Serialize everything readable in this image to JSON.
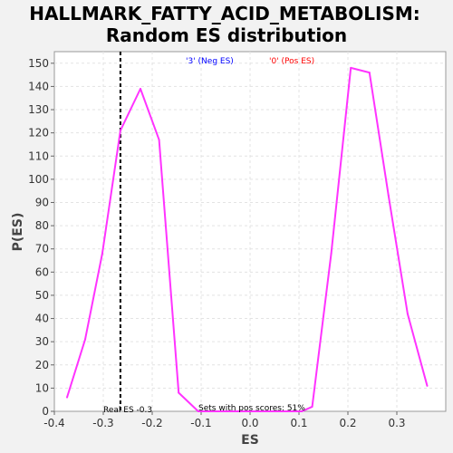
{
  "chart_data": {
    "type": "line",
    "title_line1": "HALLMARK_FATTY_ACID_METABOLISM:",
    "title_line2": "Random ES distribution",
    "xlabel": "ES",
    "ylabel": "P(ES)",
    "xlim": [
      -0.4,
      0.4
    ],
    "ylim": [
      0,
      155
    ],
    "x_ticks": [
      -0.4,
      -0.3,
      -0.2,
      -0.1,
      0.0,
      0.1,
      0.2,
      0.3
    ],
    "x_tick_labels": [
      "-0.4",
      "-0.3",
      "-0.2",
      "-0.1",
      "0.0",
      "0.1",
      "0.2",
      "0.3"
    ],
    "y_ticks": [
      0,
      10,
      20,
      30,
      40,
      50,
      60,
      70,
      80,
      90,
      100,
      110,
      120,
      130,
      140,
      150
    ],
    "grid": true,
    "legend": [
      {
        "label": "'3' (Neg ES)",
        "color": "#0000ff"
      },
      {
        "label": "'0' (Pos ES)",
        "color": "#ff0000"
      }
    ],
    "series": [
      {
        "color": "#ff33ff",
        "x": [
          -0.374,
          -0.337,
          -0.302,
          -0.265,
          -0.224,
          -0.186,
          -0.146,
          -0.106,
          -0.066,
          0.0,
          0.066,
          0.106,
          0.127,
          0.166,
          0.206,
          0.244,
          0.283,
          0.322,
          0.362
        ],
        "y": [
          6,
          31,
          68,
          121,
          139,
          117,
          8,
          0,
          0,
          0,
          0,
          0,
          2,
          68,
          148,
          146,
          93,
          42,
          11
        ]
      }
    ],
    "real_es": {
      "value": -0.265,
      "label": "Real ES -0.3"
    },
    "annotation": "Sets with pos scores: 51%"
  }
}
